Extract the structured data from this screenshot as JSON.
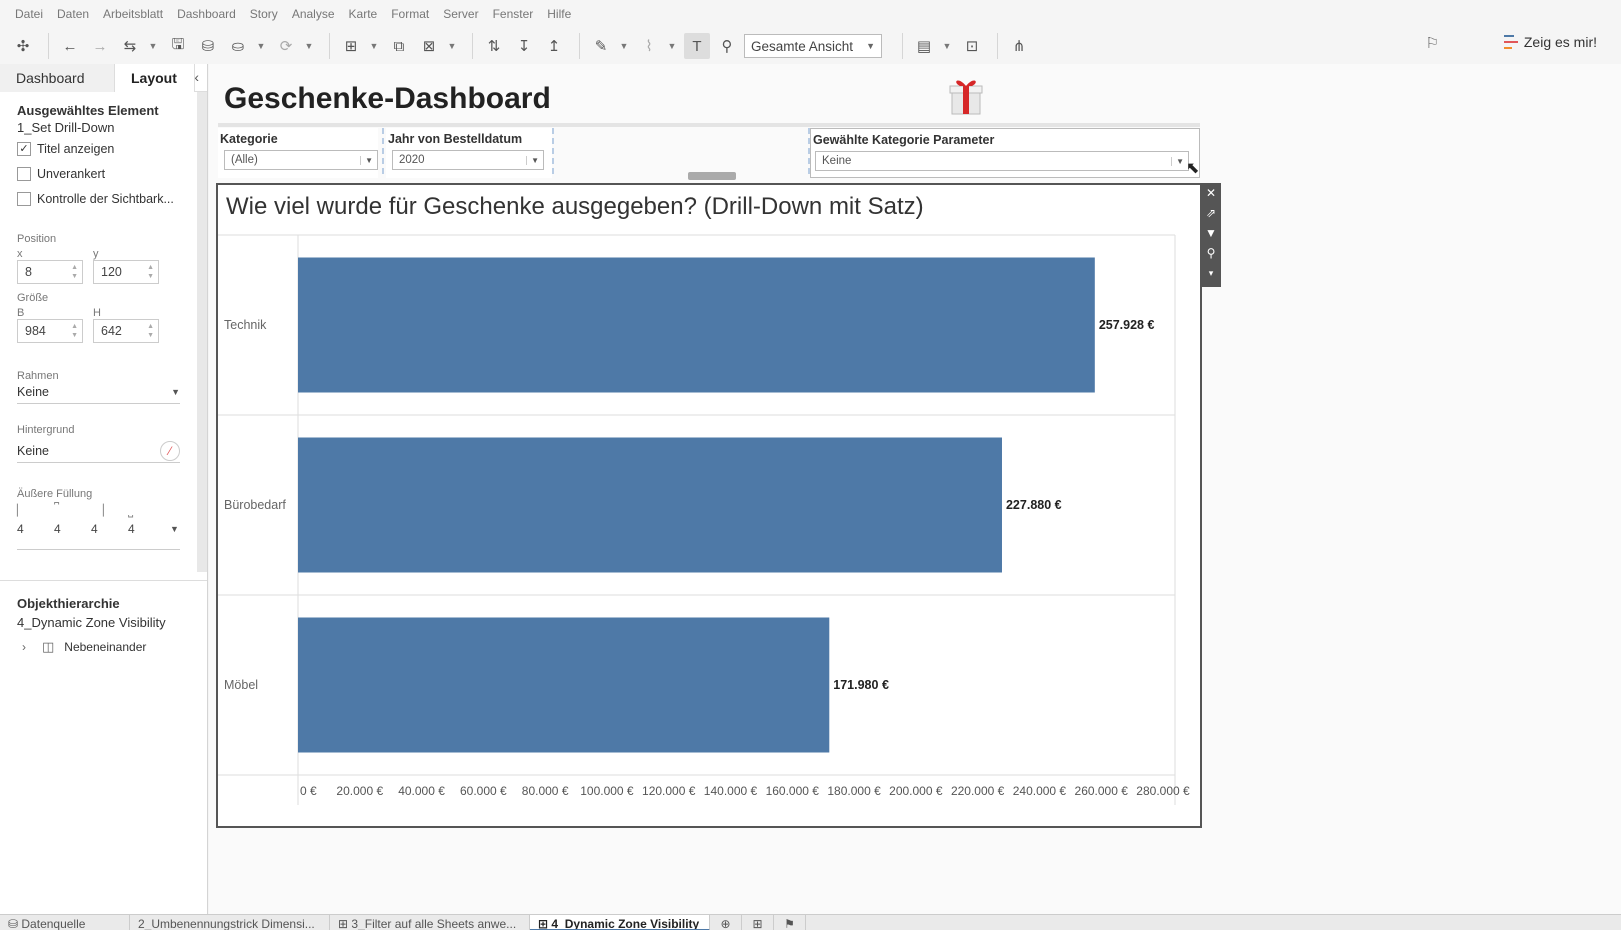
{
  "menu": [
    "Datei",
    "Daten",
    "Arbeitsblatt",
    "Dashboard",
    "Story",
    "Analyse",
    "Karte",
    "Format",
    "Server",
    "Fenster",
    "Hilfe"
  ],
  "toolbar": {
    "fit_value": "Gesamte Ansicht",
    "show_me_label": "Zeig es mir!",
    "show_me_colors": [
      "#4e79a7",
      "#e15759",
      "#f28e2b"
    ]
  },
  "left_pane": {
    "tabs": [
      "Dashboard",
      "Layout"
    ],
    "selected_heading": "Ausgewähltes Element",
    "selected_item": "1_Set Drill-Down",
    "checkboxes": [
      {
        "label": "Titel anzeigen",
        "checked": true
      },
      {
        "label": "Unverankert",
        "checked": false
      },
      {
        "label": "Kontrolle der Sichtbark...",
        "checked": false
      }
    ],
    "position_label": "Position",
    "x_label": "x",
    "y_label": "y",
    "x_value": "8",
    "y_value": "120",
    "size_label": "Größe",
    "w_label": "B",
    "h_label": "H",
    "w_value": "984",
    "h_value": "642",
    "border_label": "Rahmen",
    "border_value": "Keine",
    "background_label": "Hintergrund",
    "background_value": "Keine",
    "padding_label": "Äußere Füllung",
    "padding_values": [
      "4",
      "4",
      "4",
      "4"
    ],
    "hierarchy_heading": "Objekthierarchie",
    "hierarchy_root": "4_Dynamic Zone Visibility",
    "hierarchy_child": "Nebeneinander"
  },
  "dashboard": {
    "title": "Geschenke-Dashboard",
    "filters": [
      {
        "title": "Kategorie",
        "value": "(Alle)"
      },
      {
        "title": "Jahr von Bestelldatum",
        "value": "2020"
      }
    ],
    "parameter": {
      "title": "Gewählte Kategorie Parameter",
      "value": "Keine"
    },
    "sheet_title": "Wie viel wurde für Geschenke ausgegeben? (Drill-Down mit Satz)"
  },
  "chart_data": {
    "type": "bar",
    "orientation": "horizontal",
    "categories": [
      "Technik",
      "Bürobedarf",
      "Möbel"
    ],
    "values": [
      257928,
      227880,
      171980
    ],
    "data_labels": [
      "257.928 €",
      "227.880 €",
      "171.980 €"
    ],
    "xlim": [
      0,
      280000
    ],
    "x_ticks": [
      "0 €",
      "20.000 €",
      "40.000 €",
      "60.000 €",
      "80.000 €",
      "100.000 €",
      "120.000 €",
      "140.000 €",
      "160.000 €",
      "180.000 €",
      "200.000 €",
      "220.000 €",
      "240.000 €",
      "260.000 €",
      "280.000 €"
    ],
    "bar_color": "#4e79a7",
    "grid": true,
    "title": "Wie viel wurde für Geschenke ausgegeben? (Drill-Down mit Satz)"
  },
  "bottom_tabs": [
    "Datenquelle",
    "2_Umbenennungstrick Dimensi...",
    "3_Filter auf alle Sheets anwe...",
    "4_Dynamic Zone Visibility"
  ]
}
